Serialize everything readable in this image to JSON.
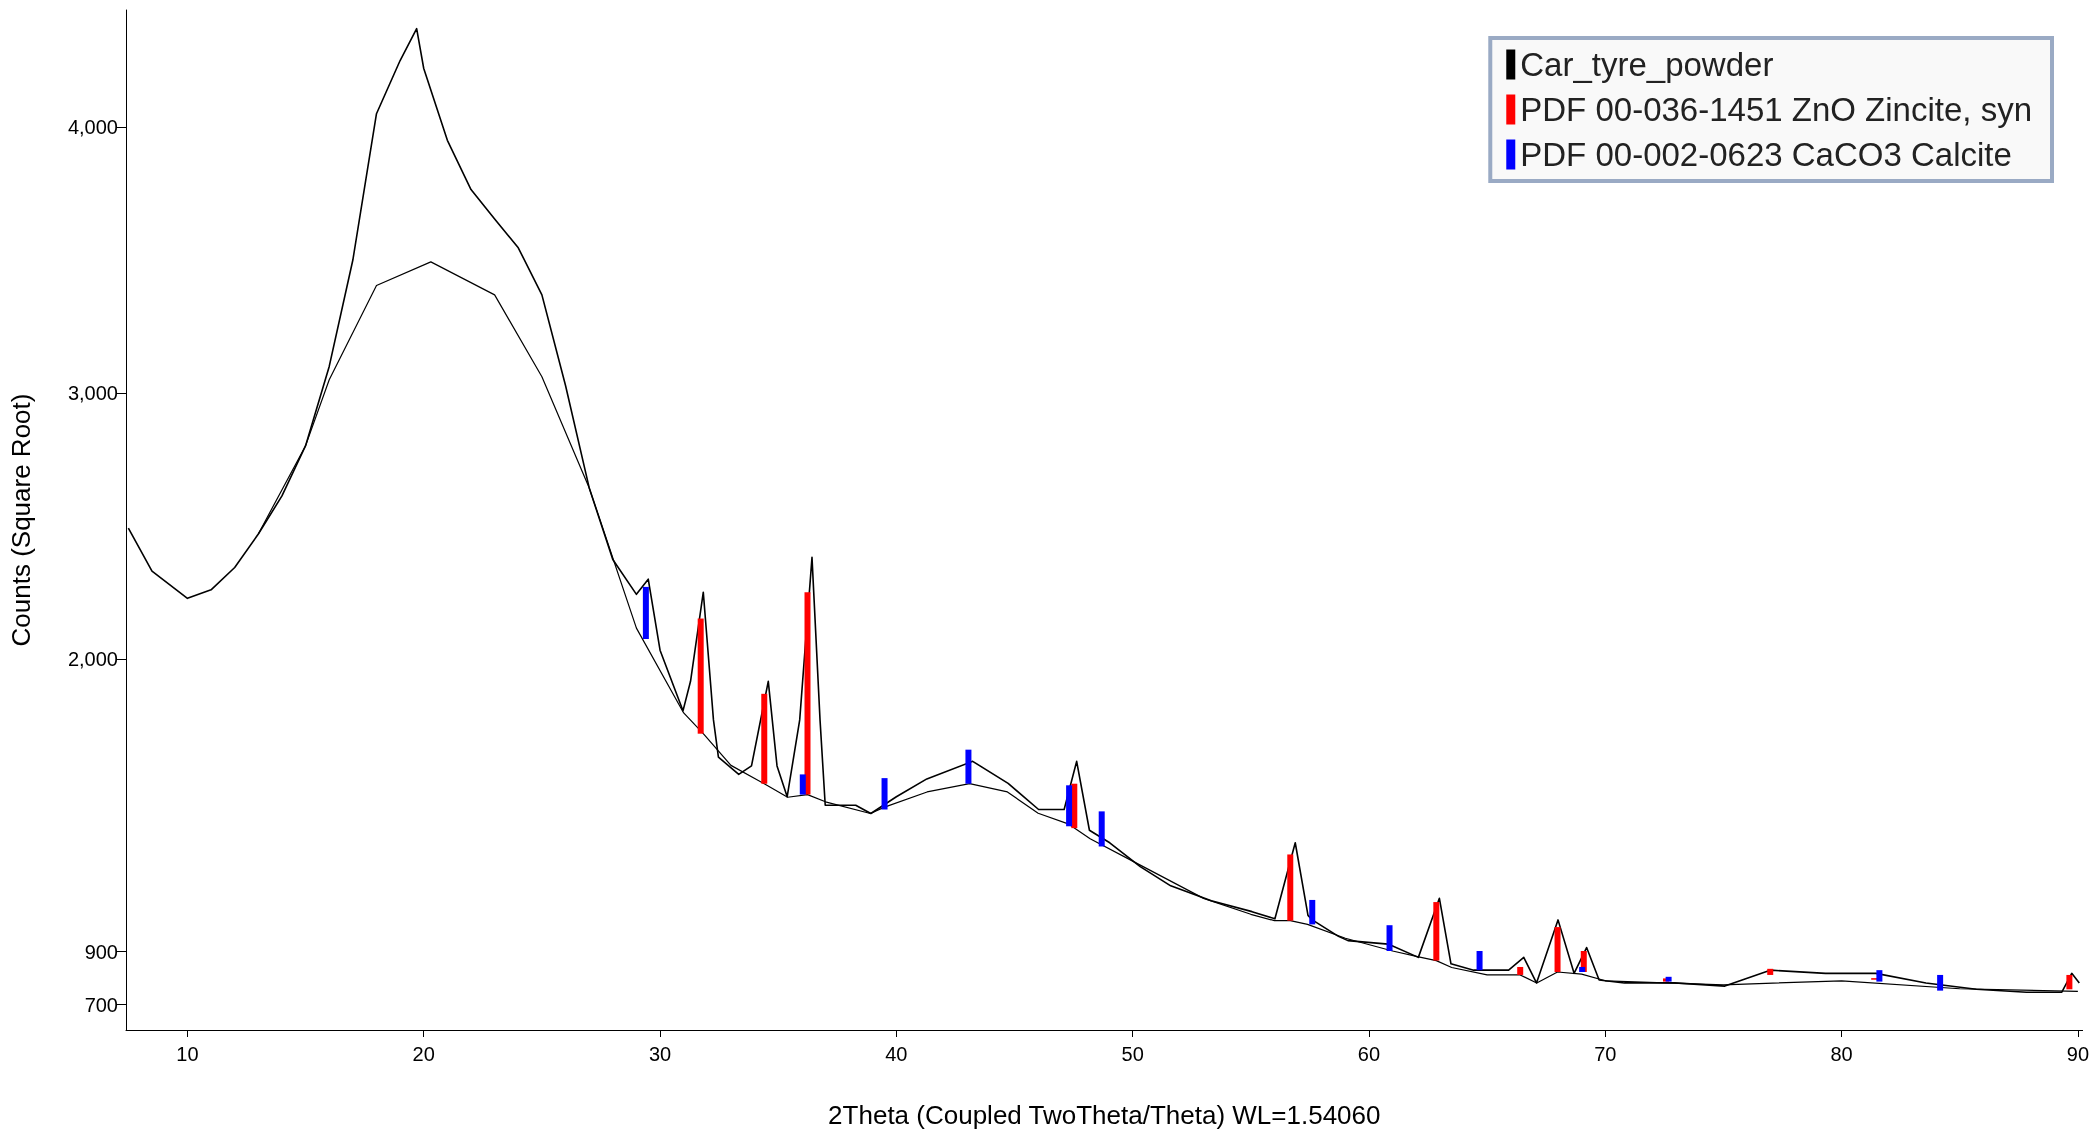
{
  "chart_data": {
    "type": "line",
    "xlabel": "2Theta (Coupled TwoTheta/Theta) WL=1.54060",
    "ylabel": "Counts (Square Root)",
    "xlim": [
      7.4,
      90.2
    ],
    "xticks": [
      10,
      20,
      30,
      40,
      50,
      60,
      70,
      80,
      90
    ],
    "ylim": [
      605,
      4440
    ],
    "yticks": [
      700,
      900,
      {
        "value": 2000,
        "label": "2,000"
      },
      {
        "value": 3000,
        "label": "3,000"
      },
      {
        "value": 4000,
        "label": "4,000"
      }
    ],
    "grid": false,
    "legend": "top right",
    "series": [
      {
        "name": "Car_tyre_powder",
        "color": "#000000",
        "x": [
          7.5,
          8.5,
          10,
          11,
          12,
          13,
          14,
          15,
          16,
          17,
          18,
          19,
          19.7,
          20,
          21,
          22,
          23,
          24,
          25,
          26,
          27,
          28,
          29,
          29.5,
          30,
          30.97,
          31.29,
          31.83,
          32.26,
          32.47,
          33.33,
          33.87,
          34.58,
          34.95,
          35.38,
          35.91,
          36.43,
          36.77,
          36.99,
          38.28,
          38.92,
          40.0,
          41.29,
          43.23,
          44.73,
          46.02,
          47.1,
          47.63,
          48.17,
          49.03,
          50.32,
          51.61,
          53.33,
          55.05,
          56.02,
          56.88,
          57.42,
          57.6,
          58.71,
          59.11,
          60.81,
          62.09,
          62.98,
          63.47,
          64.43,
          65.91,
          66.55,
          67.09,
          68.0,
          68.68,
          69.21,
          69.74,
          70.81,
          72.94,
          75.06,
          76.98,
          79.32,
          81.45,
          83.57,
          85.7,
          87.83,
          89.32,
          89.74,
          90.06
        ],
        "values": [
          2492,
          2330,
          2228,
          2260,
          2344,
          2470,
          2613,
          2802,
          3100,
          3500,
          4050,
          4250,
          4370,
          4220,
          3950,
          3765,
          3654,
          3546,
          3369,
          3028,
          2644,
          2374,
          2243,
          2300,
          2033,
          1805,
          1916,
          2251,
          1771,
          1631,
          1566,
          1598,
          1916,
          1598,
          1482,
          1771,
          2382,
          1771,
          1450,
          1450,
          1419,
          1482,
          1549,
          1615,
          1532,
          1434,
          1434,
          1615,
          1356,
          1309,
          1219,
          1147,
          1091,
          1050,
          1023,
          1309,
          1036,
          1019,
          957,
          941,
          928,
          878,
          1100,
          854,
          830,
          830,
          878,
          782,
          1019,
          818,
          915,
          793,
          782,
          782,
          770,
          830,
          818,
          818,
          782,
          758,
          747,
          747,
          818,
          782
        ]
      },
      {
        "color": "#000000",
        "x": [
          13,
          15,
          16,
          18,
          20.3,
          23,
          25,
          27,
          29,
          31,
          31.83,
          33,
          34.41,
          35.4,
          36.24,
          37,
          38.9,
          39.5,
          41.3,
          43.1,
          44.7,
          46,
          47.3,
          48.2,
          50,
          53,
          55,
          56,
          56.67,
          57.4,
          59,
          61,
          62.1,
          62.85,
          63.5,
          65,
          66.4,
          67.1,
          67.98,
          69,
          70,
          75,
          80,
          85,
          90
        ],
        "values": [
          2470,
          2802,
          3050,
          3404,
          3493,
          3369,
          3061,
          2644,
          2116,
          1797,
          1719,
          1600,
          1531,
          1480,
          1490,
          1463,
          1419,
          1443,
          1500,
          1531,
          1500,
          1420,
          1379,
          1324,
          1240,
          1100,
          1040,
          1016,
          1016,
          1002,
          950,
          902,
          880,
          866,
          840,
          812,
          812,
          782,
          823,
          815,
          790,
          775,
          790,
          760,
          750
        ]
      },
      {
        "name": "PDF 00-036-1451 ZnO Zincite, syn",
        "type": "bar",
        "color": "#ff0000",
        "x": [
          31.72,
          34.41,
          36.24,
          47.53,
          56.67,
          62.85,
          66.4,
          67.98,
          69.09,
          72.57,
          76.98,
          81.38,
          89.64
        ],
        "base": [
          1719,
          1531,
          1490,
          1364,
          1016,
          866,
          812,
          823,
          823,
          787,
          812,
          794,
          758
        ],
        "values": [
          433,
          338,
          761,
          167,
          249,
          220,
          30,
          169,
          79,
          12,
          23,
          6,
          54
        ]
      },
      {
        "name": "PDF 00-002-0623 CaCO3 Calcite",
        "type": "bar",
        "color": "#0000ff",
        "x": [
          29.4,
          36.04,
          39.5,
          43.05,
          47.31,
          48.69,
          57.6,
          60.87,
          64.68,
          69.02,
          72.68,
          81.6,
          84.17
        ],
        "base": [
          2075,
          1490,
          1434,
          1531,
          1371,
          1295,
          1002,
          902,
          830,
          823,
          787,
          787,
          753
        ],
        "values": [
          196,
          76,
          118,
          128,
          154,
          132,
          92,
          97,
          72,
          19,
          18,
          43,
          59
        ]
      }
    ]
  }
}
